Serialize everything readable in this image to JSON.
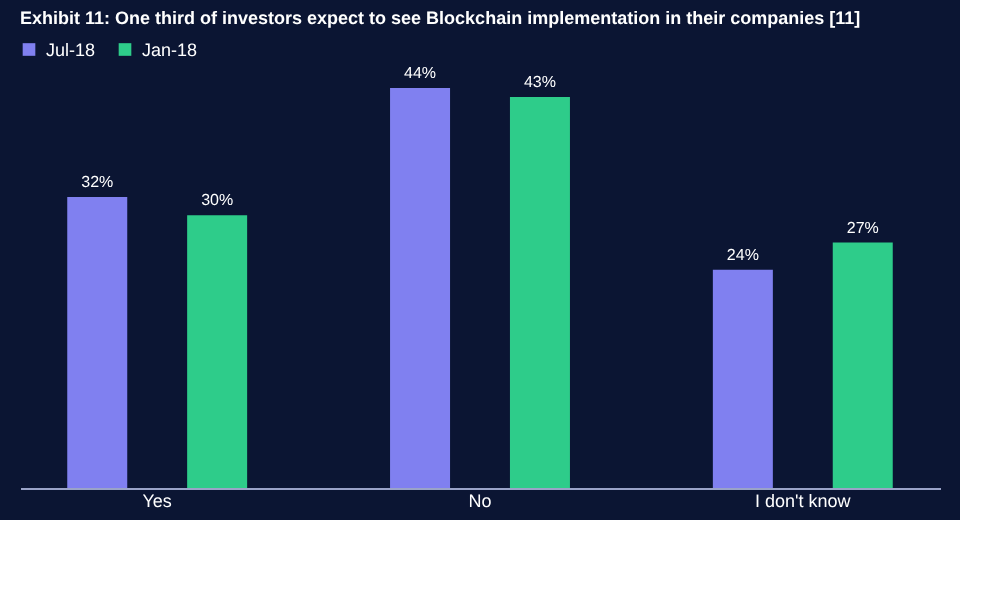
{
  "chart_data": {
    "type": "bar",
    "title": "Exhibit 11: One third of investors expect to see Blockchain implementation in their companies [11]",
    "categories": [
      "Yes",
      "No",
      "I don't know"
    ],
    "series": [
      {
        "name": "Jul-18",
        "color": "#8080f0",
        "values": [
          32,
          44,
          24
        ],
        "value_labels": [
          "32%",
          "44%",
          "24%"
        ]
      },
      {
        "name": "Jan-18",
        "color": "#2ecc8a",
        "values": [
          30,
          43,
          27
        ],
        "value_labels": [
          "30%",
          "43%",
          "27%"
        ]
      }
    ],
    "grid": false,
    "legend": "top"
  }
}
